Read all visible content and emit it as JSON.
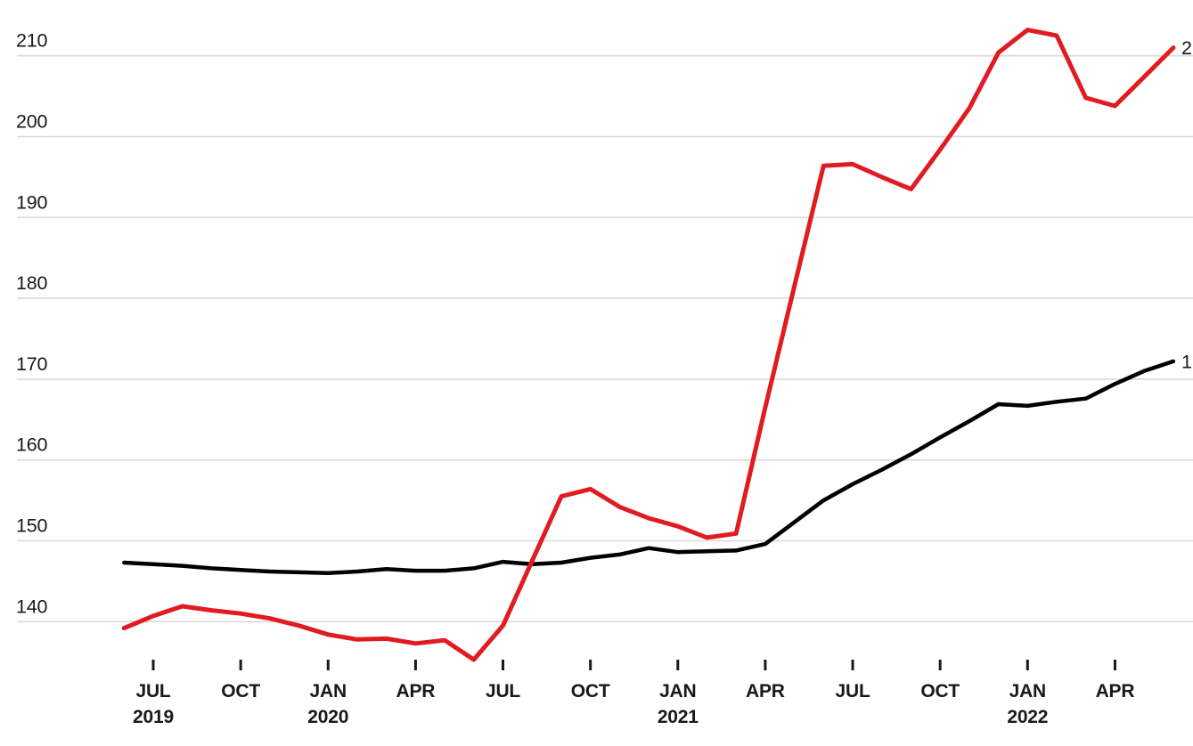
{
  "chart_data": {
    "type": "line",
    "title": "",
    "xlabel": "",
    "ylabel": "",
    "grid": true,
    "legend": "none",
    "background": "#ffffff",
    "gridline_color": "#d9d9d9",
    "tick_color": "#1a1a1a",
    "text_color": "#191919",
    "ylim": [
      133,
      215
    ],
    "y_axis": {
      "ticks": [
        140,
        150,
        160,
        170,
        180,
        190,
        200,
        210
      ],
      "tick_labels": [
        "140",
        "150",
        "160",
        "170",
        "180",
        "190",
        "200",
        "210"
      ]
    },
    "x_axis": {
      "unit": "month",
      "start": "Jun 2019",
      "end": "Jun 2022",
      "quarter_ticks": [
        {
          "index": 1,
          "month": "JUL",
          "year": "2019"
        },
        {
          "index": 4,
          "month": "OCT",
          "year": ""
        },
        {
          "index": 7,
          "month": "JAN",
          "year": "2020"
        },
        {
          "index": 10,
          "month": "APR",
          "year": ""
        },
        {
          "index": 13,
          "month": "JUL",
          "year": ""
        },
        {
          "index": 16,
          "month": "OCT",
          "year": ""
        },
        {
          "index": 19,
          "month": "JAN",
          "year": "2021"
        },
        {
          "index": 22,
          "month": "APR",
          "year": ""
        },
        {
          "index": 25,
          "month": "JUL",
          "year": ""
        },
        {
          "index": 28,
          "month": "OCT",
          "year": ""
        },
        {
          "index": 31,
          "month": "JAN",
          "year": "2022"
        },
        {
          "index": 34,
          "month": "APR",
          "year": ""
        }
      ]
    },
    "categories": [
      "Jun 2019",
      "Jul 2019",
      "Aug 2019",
      "Sep 2019",
      "Oct 2019",
      "Nov 2019",
      "Dec 2019",
      "Jan 2020",
      "Feb 2020",
      "Mar 2020",
      "Apr 2020",
      "May 2020",
      "Jun 2020",
      "Jul 2020",
      "Aug 2020",
      "Sep 2020",
      "Oct 2020",
      "Nov 2020",
      "Dec 2020",
      "Jan 2021",
      "Feb 2021",
      "Mar 2021",
      "Apr 2021",
      "May 2021",
      "Jun 2021",
      "Jul 2021",
      "Aug 2021",
      "Sep 2021",
      "Oct 2021",
      "Nov 2021",
      "Dec 2021",
      "Jan 2022",
      "Feb 2022",
      "Mar 2022",
      "Apr 2022",
      "May 2022",
      "Jun 2022"
    ],
    "series": [
      {
        "name": "black-series",
        "color": "#000000",
        "stroke_width": 4.5,
        "values": [
          147.3,
          147.1,
          146.9,
          146.6,
          146.4,
          146.2,
          146.1,
          146.0,
          146.2,
          146.5,
          146.3,
          146.3,
          146.6,
          147.4,
          147.1,
          147.3,
          147.9,
          148.3,
          149.1,
          148.6,
          148.7,
          148.8,
          149.6,
          152.3,
          155.0,
          157.0,
          158.8,
          160.7,
          162.8,
          164.8,
          166.9,
          166.7,
          167.2,
          167.6,
          169.4,
          171.0,
          172.2
        ]
      },
      {
        "name": "red-series",
        "color": "#e11b22",
        "stroke_width": 5,
        "values": [
          139.2,
          140.7,
          141.9,
          141.4,
          141.0,
          140.4,
          139.5,
          138.4,
          137.8,
          137.9,
          137.3,
          137.7,
          135.3,
          139.5,
          147.5,
          155.5,
          156.4,
          154.2,
          152.8,
          151.8,
          150.4,
          150.9,
          166.5,
          181.5,
          196.4,
          196.6,
          195.0,
          193.5,
          198.4,
          203.5,
          210.4,
          213.2,
          212.5,
          204.8,
          203.8,
          207.4,
          211.0
        ]
      }
    ],
    "end_labels": [
      {
        "series": "red-series",
        "text": "2",
        "note": "clipped at right edge"
      },
      {
        "series": "black-series",
        "text": "1",
        "note": "clipped at right edge"
      }
    ]
  }
}
